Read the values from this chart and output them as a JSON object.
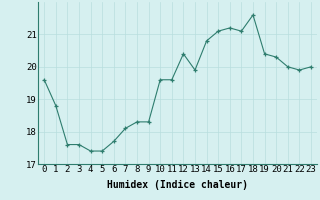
{
  "x": [
    0,
    1,
    2,
    3,
    4,
    5,
    6,
    7,
    8,
    9,
    10,
    11,
    12,
    13,
    14,
    15,
    16,
    17,
    18,
    19,
    20,
    21,
    22,
    23
  ],
  "y": [
    19.6,
    18.8,
    17.6,
    17.6,
    17.4,
    17.4,
    17.7,
    18.1,
    18.3,
    18.3,
    19.6,
    19.6,
    20.4,
    19.9,
    20.8,
    21.1,
    21.2,
    21.1,
    21.6,
    20.4,
    20.3,
    20.0,
    19.9,
    20.0
  ],
  "xlabel": "Humidex (Indice chaleur)",
  "line_color": "#2e7d6e",
  "bg_color": "#d6f0f0",
  "grid_color": "#b8dede",
  "ylim": [
    17.0,
    22.0
  ],
  "yticks": [
    17,
    18,
    19,
    20,
    21
  ],
  "xticks": [
    0,
    1,
    2,
    3,
    4,
    5,
    6,
    7,
    8,
    9,
    10,
    11,
    12,
    13,
    14,
    15,
    16,
    17,
    18,
    19,
    20,
    21,
    22,
    23
  ],
  "xlabel_fontsize": 7,
  "tick_fontsize": 6.5
}
